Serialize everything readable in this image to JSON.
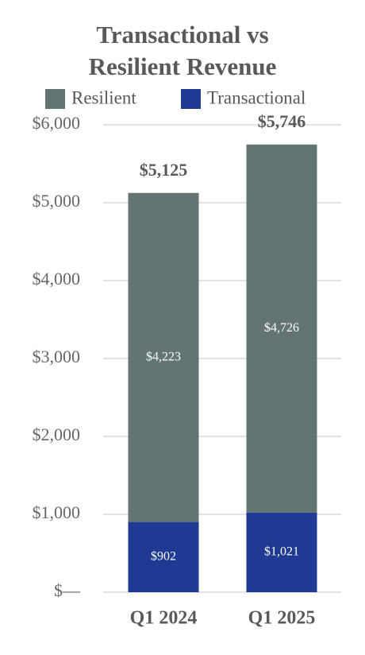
{
  "chart_data": {
    "type": "stacked_bar",
    "title": "Transactional vs Resilient Revenue",
    "categories": [
      "Q1 2024",
      "Q1 2025"
    ],
    "series": [
      {
        "name": "Transactional",
        "color": "#1f3a93",
        "values": [
          902,
          1021
        ],
        "value_labels": [
          "$902",
          "$1,021"
        ]
      },
      {
        "name": "Resilient",
        "color": "#647473",
        "values": [
          4223,
          4726
        ],
        "value_labels": [
          "$4,223",
          "$4,726"
        ]
      }
    ],
    "legend_order": [
      "Resilient",
      "Transactional"
    ],
    "totals": {
      "values": [
        5125,
        5746
      ],
      "value_labels": [
        "$5,125",
        "$5,746"
      ]
    },
    "ylim": [
      0,
      6000
    ],
    "yticks": [
      {
        "value": 0,
        "label": "$—"
      },
      {
        "value": 1000,
        "label": "$1,000"
      },
      {
        "value": 2000,
        "label": "$2,000"
      },
      {
        "value": 3000,
        "label": "$3,000"
      },
      {
        "value": 4000,
        "label": "$4,000"
      },
      {
        "value": 5000,
        "label": "$5,000"
      },
      {
        "value": 6000,
        "label": "$6,000"
      }
    ],
    "grid": true,
    "legend": "top"
  }
}
